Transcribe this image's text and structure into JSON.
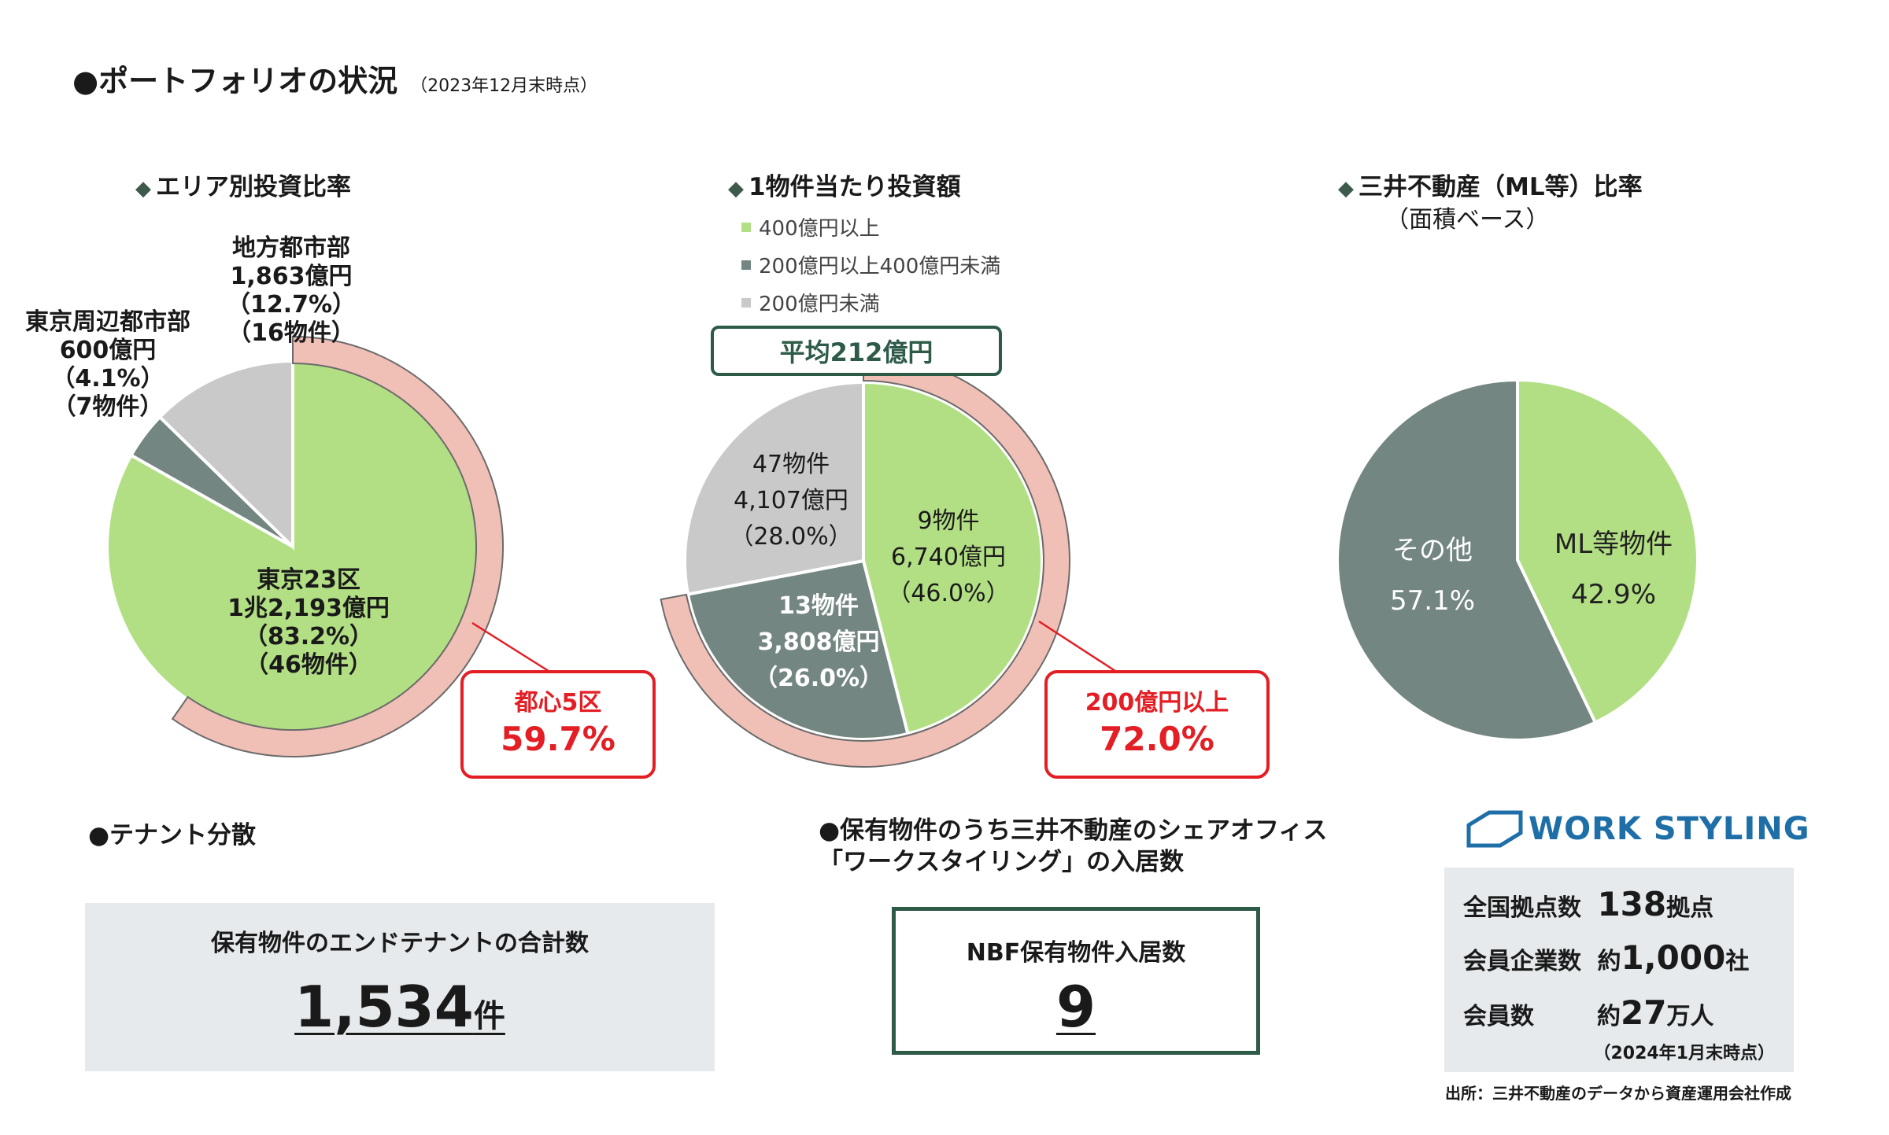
{
  "header": {
    "title": "●ポートフォリオの状況",
    "subtitle": "（2023年12月末時点）"
  },
  "colors": {
    "light_green": "#b2df84",
    "slate": "#738682",
    "light_gray": "#c9c9c9",
    "pink_ring": "#f0bfb6",
    "callout_red": "#e31e24",
    "dark_green": "#2e5a48"
  },
  "chart_data": [
    {
      "type": "pie",
      "title": "エリア別投資比率",
      "slices": [
        {
          "name": "東京23区",
          "amount": "1兆2,193億円",
          "percent_label": "（83.2%）",
          "count": "（46物件）",
          "value": 83.2,
          "color": "#b2df84"
        },
        {
          "name": "東京周辺都市部",
          "amount": "600億円",
          "percent_label": "（4.1%）",
          "count": "（7物件）",
          "value": 4.1,
          "color": "#738682"
        },
        {
          "name": "地方都市部",
          "amount": "1,863億円",
          "percent_label": "（12.7%）",
          "count": "（16物件）",
          "value": 12.7,
          "color": "#c9c9c9"
        }
      ],
      "ring": {
        "value": 59.7,
        "color": "#f0bfb6"
      },
      "callout": {
        "label": "都心5区",
        "value": "59.7%"
      }
    },
    {
      "type": "pie",
      "title": "1物件当たり投資額",
      "legend": [
        "400億円以上",
        "200億円以上400億円未満",
        "200億円未満"
      ],
      "average_label": "平均212億円",
      "slices": [
        {
          "count": "9物件",
          "amount": "6,740億円",
          "percent_label": "（46.0%）",
          "value": 46.0,
          "color": "#b2df84"
        },
        {
          "count": "13物件",
          "amount": "3,808億円",
          "percent_label": "（26.0%）",
          "value": 26.0,
          "color": "#738682"
        },
        {
          "count": "47物件",
          "amount": "4,107億円",
          "percent_label": "（28.0%）",
          "value": 28.0,
          "color": "#c9c9c9"
        }
      ],
      "ring": {
        "value": 72.0,
        "color": "#f0bfb6"
      },
      "callout": {
        "label": "200億円以上",
        "value": "72.0%"
      }
    },
    {
      "type": "pie",
      "title": "三井不動産（ML等）比率",
      "subtitle": "（面積ベース）",
      "slices": [
        {
          "name": "ML等物件",
          "percent_label": "42.9%",
          "value": 42.9,
          "color": "#b2df84"
        },
        {
          "name": "その他",
          "percent_label": "57.1%",
          "value": 57.1,
          "color": "#738682"
        }
      ]
    }
  ],
  "tenant": {
    "heading": "●テナント分散",
    "box_label": "保有物件のエンドテナントの合計数",
    "number": "1,534",
    "unit": "件"
  },
  "workstyling": {
    "heading_line1": "●保有物件のうち三井不動産のシェアオフィス",
    "heading_line2": "「ワークスタイリング」の入居数",
    "box_label": "NBF保有物件入居数",
    "number": "9",
    "logo_text": "WORK STYLING",
    "stats": [
      {
        "label": "全国拠点数",
        "prefix": "",
        "value": "138",
        "unit": "拠点"
      },
      {
        "label": "会員企業数",
        "prefix": "約",
        "value": "1,000",
        "unit": "社"
      },
      {
        "label": "会員数",
        "prefix": "約",
        "value": "27",
        "unit": "万人"
      }
    ],
    "date_note": "（2024年1月末時点）",
    "source": "出所：三井不動産のデータから資産運用会社作成"
  }
}
